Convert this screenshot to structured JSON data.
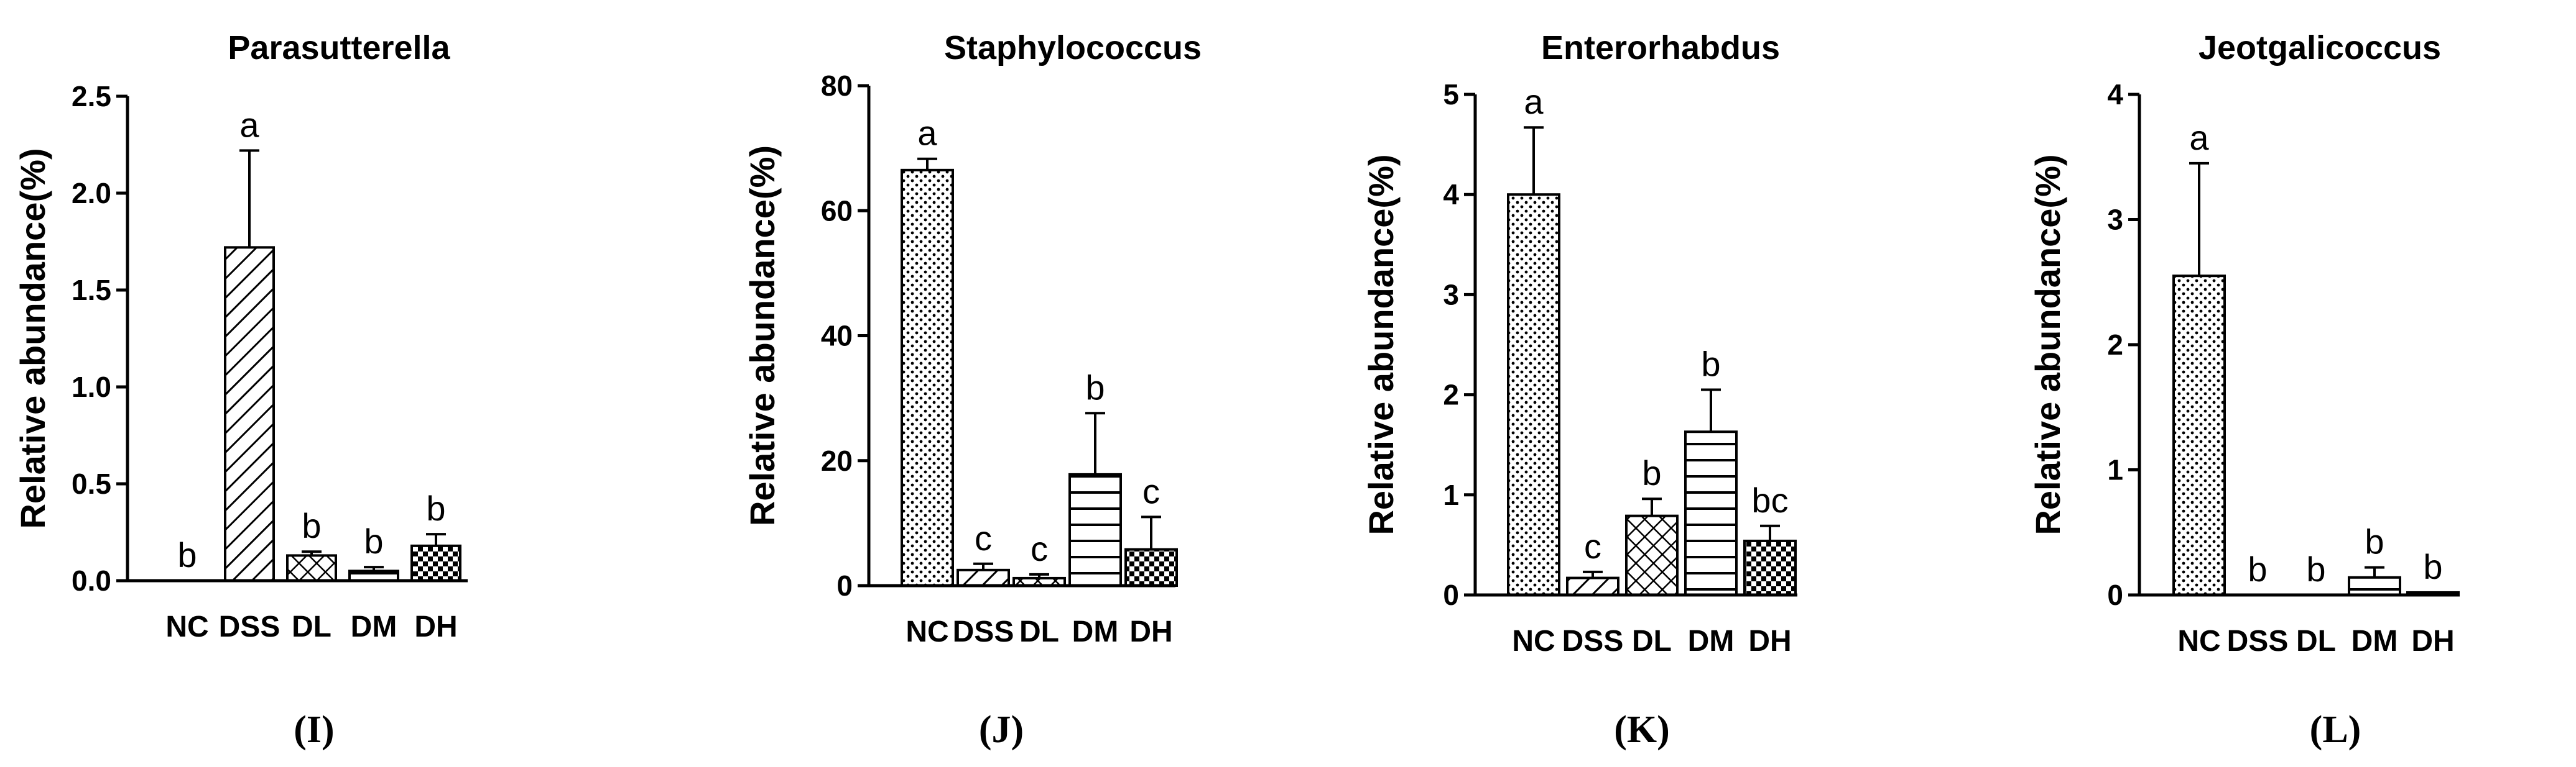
{
  "chart_data": [
    {
      "type": "bar",
      "title": "Parasutterella",
      "panel_label": "(I)",
      "ylabel": "Relative abundance(%)",
      "xlabel": "",
      "categories": [
        "NC",
        "DSS",
        "DL",
        "DM",
        "DH"
      ],
      "values": [
        0.0,
        1.72,
        0.13,
        0.05,
        0.18
      ],
      "errors": [
        0.0,
        0.5,
        0.02,
        0.02,
        0.06
      ],
      "significance": [
        "b",
        "a",
        "b",
        "b",
        "b"
      ],
      "ylim": [
        0,
        2.5
      ],
      "yticks": [
        0.0,
        0.5,
        1.0,
        1.5,
        2.0,
        2.5
      ],
      "ytick_labels": [
        "0.0",
        "0.5",
        "1.0",
        "1.5",
        "2.0",
        "2.5"
      ]
    },
    {
      "type": "bar",
      "title": "Staphylococcus",
      "panel_label": "(J)",
      "ylabel": "Relative abundance(%)",
      "xlabel": "",
      "categories": [
        "NC",
        "DSS",
        "DL",
        "DM",
        "DH"
      ],
      "values": [
        66.5,
        2.5,
        1.2,
        17.8,
        5.8
      ],
      "errors": [
        1.8,
        1.0,
        0.6,
        9.8,
        5.2
      ],
      "significance": [
        "a",
        "c",
        "c",
        "b",
        "c"
      ],
      "ylim": [
        0,
        80
      ],
      "yticks": [
        0,
        20,
        40,
        60,
        80
      ],
      "ytick_labels": [
        "0",
        "20",
        "40",
        "60",
        "80"
      ]
    },
    {
      "type": "bar",
      "title": "Enterorhabdus",
      "panel_label": "(K)",
      "ylabel": "Relative abundance(%)",
      "xlabel": "",
      "categories": [
        "NC",
        "DSS",
        "DL",
        "DM",
        "DH"
      ],
      "values": [
        4.0,
        0.17,
        0.79,
        1.63,
        0.54
      ],
      "errors": [
        0.67,
        0.06,
        0.17,
        0.42,
        0.15
      ],
      "significance": [
        "a",
        "c",
        "b",
        "b",
        "bc"
      ],
      "ylim": [
        0,
        5
      ],
      "yticks": [
        0,
        1,
        2,
        3,
        4,
        5
      ],
      "ytick_labels": [
        "0",
        "1",
        "2",
        "3",
        "4",
        "5"
      ]
    },
    {
      "type": "bar",
      "title": "Jeotgalicoccus",
      "panel_label": "(L)",
      "ylabel": "Relative abundance(%)",
      "xlabel": "",
      "categories": [
        "NC",
        "DSS",
        "DL",
        "DM",
        "DH"
      ],
      "values": [
        2.55,
        0.0,
        0.0,
        0.14,
        0.02
      ],
      "errors": [
        0.9,
        0.0,
        0.0,
        0.08,
        0.0
      ],
      "significance": [
        "a",
        "b",
        "b",
        "b",
        "b"
      ],
      "ylim": [
        0,
        4
      ],
      "yticks": [
        0,
        1,
        2,
        3,
        4
      ],
      "ytick_labels": [
        "0",
        "1",
        "2",
        "3",
        "4"
      ]
    }
  ]
}
